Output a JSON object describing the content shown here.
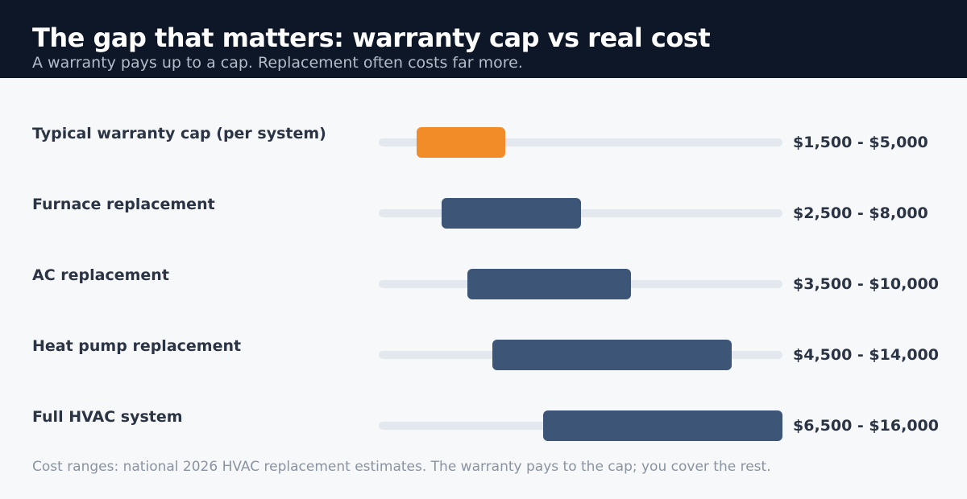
{
  "header": {
    "title": "The gap that matters: warranty cap vs real cost",
    "subtitle": "A warranty pays up to a cap. Replacement often costs far more."
  },
  "footnote": "Cost ranges: national 2026 HVAC replacement estimates. The warranty pays to the cap; you cover the rest.",
  "colors": {
    "cap_bar": "#f28c28",
    "cost_bar": "#3d5677",
    "track": "#e3e8ee"
  },
  "chart_data": {
    "type": "bar",
    "orientation": "horizontal",
    "xlim": [
      0,
      16000
    ],
    "grid": false,
    "categories": [
      "Typical warranty cap (per system)",
      "Furnace replacement",
      "AC replacement",
      "Heat pump replacement",
      "Full HVAC system"
    ],
    "ranges": [
      {
        "low": 1500,
        "high": 5000,
        "label": "$1,500 - $5,000",
        "kind": "cap"
      },
      {
        "low": 2500,
        "high": 8000,
        "label": "$2,500 - $8,000",
        "kind": "cost"
      },
      {
        "low": 3500,
        "high": 10000,
        "label": "$3,500 - $10,000",
        "kind": "cost"
      },
      {
        "low": 4500,
        "high": 14000,
        "label": "$4,500 - $14,000",
        "kind": "cost"
      },
      {
        "low": 6500,
        "high": 16000,
        "label": "$6,500 - $16,000",
        "kind": "cost"
      }
    ]
  }
}
